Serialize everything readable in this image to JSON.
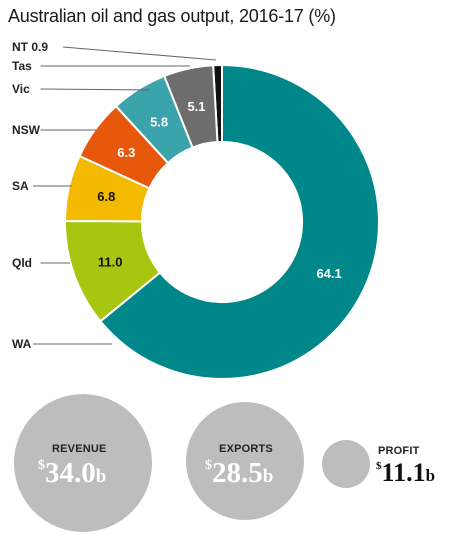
{
  "chart_data": {
    "type": "pie",
    "title": "Australian oil and gas output, 2016-17 (%)",
    "start": "NT",
    "direction": "counterclockwise",
    "inner_radius_ratio": 0.51,
    "slices": [
      {
        "name": "NT",
        "value": 0.9,
        "display": "0.9",
        "color": "#111111"
      },
      {
        "name": "Tas",
        "value": 0.0,
        "display": "",
        "color": "#ffffff"
      },
      {
        "name": "Vic",
        "value": 5.1,
        "display": "5.1",
        "color": "#6d6d6d"
      },
      {
        "name": "NSW",
        "value": 5.8,
        "display": "5.8",
        "color": "#3aa3ab"
      },
      {
        "name": "SA",
        "value": 6.3,
        "display": "6.3",
        "color": "#e8580c"
      },
      {
        "name": "Qld",
        "value": 6.8,
        "display": "6.8",
        "color": "#f4ba00"
      },
      {
        "name": "WA",
        "value": 11.0,
        "display": "11.0",
        "color": "#a8c610"
      },
      {
        "name": "",
        "value": 64.1,
        "display": "64.1",
        "color": "#00878a"
      }
    ],
    "labels": [
      {
        "text": "NT 0.9"
      },
      {
        "text": "Tas"
      },
      {
        "text": "Vic"
      },
      {
        "text": "NSW"
      },
      {
        "text": "SA"
      },
      {
        "text": "Qld"
      },
      {
        "text": "WA"
      }
    ]
  },
  "summary": {
    "revenue": {
      "label": "REVENUE",
      "currency": "$",
      "number": "34.0",
      "suffix": "b"
    },
    "exports": {
      "label": "EXPORTS",
      "currency": "$",
      "number": "28.5",
      "suffix": "b"
    },
    "profit": {
      "label": "PROFIT",
      "currency": "$",
      "number": "11.1",
      "suffix": "b"
    }
  }
}
